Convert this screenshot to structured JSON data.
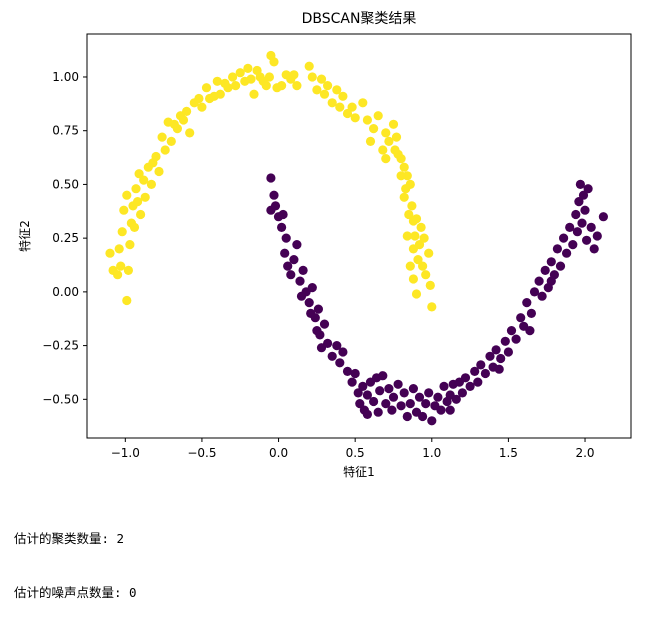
{
  "chart_data": {
    "type": "scatter",
    "title": "DBSCAN聚类结果",
    "xlabel": "特征1",
    "ylabel": "特征2",
    "xlim": [
      -1.25,
      2.3
    ],
    "ylim": [
      -0.68,
      1.2
    ],
    "xticks": [
      -1.0,
      -0.5,
      0.0,
      0.5,
      1.0,
      1.5,
      2.0
    ],
    "xtick_labels": [
      "−1.0",
      "−0.5",
      "0.0",
      "0.5",
      "1.0",
      "1.5",
      "2.0"
    ],
    "yticks": [
      -0.5,
      -0.25,
      0.0,
      0.25,
      0.5,
      0.75,
      1.0
    ],
    "ytick_labels": [
      "−0.50",
      "−0.25",
      "0.00",
      "0.25",
      "0.50",
      "0.75",
      "1.00"
    ],
    "grid": false,
    "legend": false,
    "colors": {
      "cluster0": "#440154",
      "cluster1": "#fde725"
    },
    "series": [
      {
        "color": "#fde725",
        "points": [
          [
            -1.1,
            0.18
          ],
          [
            -1.08,
            0.1
          ],
          [
            -1.05,
            0.08
          ],
          [
            -1.04,
            0.2
          ],
          [
            -1.03,
            0.12
          ],
          [
            -1.02,
            0.28
          ],
          [
            -1.01,
            0.38
          ],
          [
            -0.99,
            -0.04
          ],
          [
            -0.99,
            0.45
          ],
          [
            -0.98,
            0.1
          ],
          [
            -0.97,
            0.22
          ],
          [
            -0.96,
            0.32
          ],
          [
            -0.95,
            0.4
          ],
          [
            -0.94,
            0.3
          ],
          [
            -0.93,
            0.48
          ],
          [
            -0.92,
            0.42
          ],
          [
            -0.91,
            0.55
          ],
          [
            -0.9,
            0.36
          ],
          [
            -0.88,
            0.52
          ],
          [
            -0.87,
            0.44
          ],
          [
            -0.85,
            0.58
          ],
          [
            -0.83,
            0.5
          ],
          [
            -0.82,
            0.6
          ],
          [
            -0.8,
            0.63
          ],
          [
            -0.78,
            0.56
          ],
          [
            -0.76,
            0.72
          ],
          [
            -0.74,
            0.66
          ],
          [
            -0.72,
            0.79
          ],
          [
            -0.7,
            0.7
          ],
          [
            -0.68,
            0.78
          ],
          [
            -0.66,
            0.76
          ],
          [
            -0.64,
            0.82
          ],
          [
            -0.62,
            0.8
          ],
          [
            -0.6,
            0.84
          ],
          [
            -0.58,
            0.74
          ],
          [
            -0.55,
            0.88
          ],
          [
            -0.52,
            0.9
          ],
          [
            -0.5,
            0.86
          ],
          [
            -0.47,
            0.95
          ],
          [
            -0.45,
            0.9
          ],
          [
            -0.42,
            0.91
          ],
          [
            -0.4,
            0.98
          ],
          [
            -0.38,
            0.92
          ],
          [
            -0.35,
            0.97
          ],
          [
            -0.33,
            0.95
          ],
          [
            -0.3,
            1.0
          ],
          [
            -0.28,
            0.96
          ],
          [
            -0.25,
            1.02
          ],
          [
            -0.22,
            0.98
          ],
          [
            -0.2,
            1.04
          ],
          [
            -0.18,
            0.99
          ],
          [
            -0.16,
            0.92
          ],
          [
            -0.14,
            1.03
          ],
          [
            -0.12,
            1.0
          ],
          [
            -0.1,
            0.98
          ],
          [
            -0.08,
            0.96
          ],
          [
            -0.06,
            1.0
          ],
          [
            -0.05,
            1.1
          ],
          [
            -0.03,
            1.07
          ],
          [
            -0.01,
            0.95
          ],
          [
            0.02,
            0.96
          ],
          [
            0.05,
            1.01
          ],
          [
            0.08,
            0.99
          ],
          [
            0.1,
            1.01
          ],
          [
            0.12,
            0.96
          ],
          [
            0.2,
            1.05
          ],
          [
            0.22,
            1.0
          ],
          [
            0.25,
            0.94
          ],
          [
            0.28,
            0.99
          ],
          [
            0.3,
            0.92
          ],
          [
            0.32,
            0.96
          ],
          [
            0.35,
            0.88
          ],
          [
            0.38,
            0.94
          ],
          [
            0.4,
            0.86
          ],
          [
            0.42,
            0.91
          ],
          [
            0.45,
            0.83
          ],
          [
            0.48,
            0.86
          ],
          [
            0.5,
            0.81
          ],
          [
            0.55,
            0.88
          ],
          [
            0.58,
            0.8
          ],
          [
            0.62,
            0.76
          ],
          [
            0.65,
            0.82
          ],
          [
            0.68,
            0.66
          ],
          [
            0.7,
            0.74
          ],
          [
            0.72,
            0.7
          ],
          [
            0.75,
            0.78
          ],
          [
            0.77,
            0.72
          ],
          [
            0.78,
            0.64
          ],
          [
            0.8,
            0.62
          ],
          [
            0.82,
            0.58
          ],
          [
            0.83,
            0.48
          ],
          [
            0.84,
            0.54
          ],
          [
            0.85,
            0.36
          ],
          [
            0.86,
            0.5
          ],
          [
            0.87,
            0.4
          ],
          [
            0.88,
            0.33
          ],
          [
            0.88,
            0.2
          ],
          [
            0.89,
            0.26
          ],
          [
            0.9,
            0.34
          ],
          [
            0.91,
            0.15
          ],
          [
            0.92,
            0.22
          ],
          [
            0.93,
            0.3
          ],
          [
            0.94,
            0.12
          ],
          [
            0.95,
            0.25
          ],
          [
            0.96,
            0.08
          ],
          [
            0.98,
            0.18
          ],
          [
            0.99,
            0.03
          ],
          [
            1.0,
            -0.07
          ],
          [
            0.9,
            -0.01
          ],
          [
            0.88,
            0.06
          ],
          [
            0.86,
            0.12
          ],
          [
            0.84,
            0.26
          ],
          [
            0.82,
            0.44
          ],
          [
            0.8,
            0.54
          ],
          [
            0.76,
            0.66
          ],
          [
            0.7,
            0.62
          ],
          [
            0.6,
            0.7
          ]
        ]
      },
      {
        "color": "#440154",
        "points": [
          [
            -0.05,
            0.53
          ],
          [
            -0.03,
            0.45
          ],
          [
            -0.05,
            0.38
          ],
          [
            -0.02,
            0.4
          ],
          [
            0.0,
            0.35
          ],
          [
            0.02,
            0.3
          ],
          [
            0.03,
            0.36
          ],
          [
            0.05,
            0.25
          ],
          [
            0.04,
            0.18
          ],
          [
            0.06,
            0.12
          ],
          [
            0.08,
            0.08
          ],
          [
            0.1,
            0.15
          ],
          [
            0.12,
            0.22
          ],
          [
            0.14,
            0.05
          ],
          [
            0.15,
            -0.02
          ],
          [
            0.16,
            0.1
          ],
          [
            0.18,
            0.0
          ],
          [
            0.2,
            -0.05
          ],
          [
            0.21,
            -0.1
          ],
          [
            0.22,
            0.02
          ],
          [
            0.24,
            -0.12
          ],
          [
            0.25,
            -0.18
          ],
          [
            0.26,
            -0.08
          ],
          [
            0.27,
            -0.2
          ],
          [
            0.28,
            -0.26
          ],
          [
            0.3,
            -0.15
          ],
          [
            0.32,
            -0.24
          ],
          [
            0.35,
            -0.3
          ],
          [
            0.38,
            -0.25
          ],
          [
            0.4,
            -0.33
          ],
          [
            0.42,
            -0.28
          ],
          [
            0.45,
            -0.37
          ],
          [
            0.48,
            -0.42
          ],
          [
            0.5,
            -0.38
          ],
          [
            0.52,
            -0.47
          ],
          [
            0.53,
            -0.52
          ],
          [
            0.55,
            -0.44
          ],
          [
            0.56,
            -0.55
          ],
          [
            0.58,
            -0.48
          ],
          [
            0.6,
            -0.42
          ],
          [
            0.62,
            -0.51
          ],
          [
            0.64,
            -0.4
          ],
          [
            0.65,
            -0.56
          ],
          [
            0.66,
            -0.46
          ],
          [
            0.68,
            -0.39
          ],
          [
            0.7,
            -0.52
          ],
          [
            0.72,
            -0.45
          ],
          [
            0.74,
            -0.55
          ],
          [
            0.75,
            -0.49
          ],
          [
            0.78,
            -0.43
          ],
          [
            0.8,
            -0.53
          ],
          [
            0.82,
            -0.47
          ],
          [
            0.84,
            -0.58
          ],
          [
            0.86,
            -0.52
          ],
          [
            0.88,
            -0.45
          ],
          [
            0.9,
            -0.56
          ],
          [
            0.92,
            -0.49
          ],
          [
            0.94,
            -0.58
          ],
          [
            0.96,
            -0.52
          ],
          [
            0.98,
            -0.47
          ],
          [
            1.0,
            -0.6
          ],
          [
            1.02,
            -0.53
          ],
          [
            1.04,
            -0.49
          ],
          [
            1.06,
            -0.55
          ],
          [
            1.08,
            -0.44
          ],
          [
            1.1,
            -0.51
          ],
          [
            1.12,
            -0.48
          ],
          [
            1.14,
            -0.43
          ],
          [
            1.16,
            -0.5
          ],
          [
            1.18,
            -0.42
          ],
          [
            1.2,
            -0.47
          ],
          [
            1.22,
            -0.4
          ],
          [
            1.25,
            -0.44
          ],
          [
            1.28,
            -0.37
          ],
          [
            1.3,
            -0.42
          ],
          [
            1.32,
            -0.34
          ],
          [
            1.35,
            -0.38
          ],
          [
            1.38,
            -0.3
          ],
          [
            1.4,
            -0.35
          ],
          [
            1.42,
            -0.27
          ],
          [
            1.45,
            -0.31
          ],
          [
            1.48,
            -0.23
          ],
          [
            1.5,
            -0.28
          ],
          [
            1.52,
            -0.18
          ],
          [
            1.55,
            -0.22
          ],
          [
            1.58,
            -0.12
          ],
          [
            1.6,
            -0.16
          ],
          [
            1.62,
            -0.05
          ],
          [
            1.65,
            -0.1
          ],
          [
            1.67,
            0.0
          ],
          [
            1.7,
            0.05
          ],
          [
            1.72,
            -0.02
          ],
          [
            1.74,
            0.1
          ],
          [
            1.76,
            0.02
          ],
          [
            1.78,
            0.14
          ],
          [
            1.8,
            0.08
          ],
          [
            1.82,
            0.2
          ],
          [
            1.84,
            0.12
          ],
          [
            1.86,
            0.25
          ],
          [
            1.88,
            0.18
          ],
          [
            1.9,
            0.3
          ],
          [
            1.92,
            0.22
          ],
          [
            1.94,
            0.36
          ],
          [
            1.95,
            0.28
          ],
          [
            1.96,
            0.42
          ],
          [
            1.97,
            0.5
          ],
          [
            1.98,
            0.32
          ],
          [
            1.99,
            0.45
          ],
          [
            2.0,
            0.38
          ],
          [
            2.01,
            0.24
          ],
          [
            2.02,
            0.48
          ],
          [
            2.04,
            0.3
          ],
          [
            2.06,
            0.2
          ],
          [
            2.08,
            0.26
          ],
          [
            2.12,
            0.35
          ],
          [
            1.78,
            0.05
          ],
          [
            1.64,
            -0.18
          ],
          [
            1.44,
            -0.36
          ],
          [
            1.12,
            -0.55
          ],
          [
            0.58,
            -0.57
          ]
        ]
      }
    ]
  },
  "output": {
    "line1": "估计的聚类数量: 2",
    "line2": "估计的噪声点数量: 0"
  }
}
